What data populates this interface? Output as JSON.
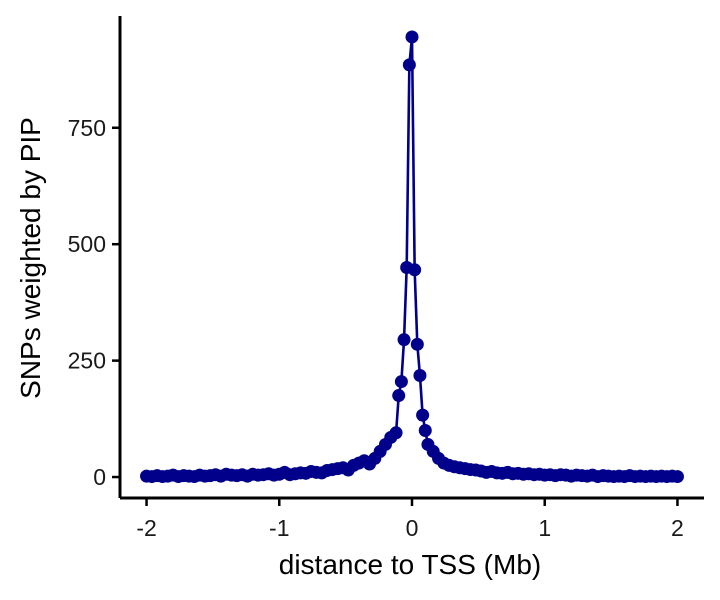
{
  "chart_data": {
    "type": "line",
    "xlabel": "distance to TSS (Mb)",
    "ylabel": "SNPs weighted by PIP",
    "xlim": [
      -2.2,
      2.2
    ],
    "ylim": [
      -45,
      990
    ],
    "xticks": [
      -2,
      -1,
      0,
      1,
      2
    ],
    "xtick_labels": [
      "-2",
      "-1",
      "0",
      "1",
      "2"
    ],
    "yticks": [
      0,
      250,
      500,
      750
    ],
    "ytick_labels": [
      "0",
      "250",
      "500",
      "750"
    ],
    "grid": false,
    "legend": false,
    "color": "#00008B",
    "series": [
      {
        "x": [
          -2.0,
          -1.96,
          -1.92,
          -1.88,
          -1.84,
          -1.8,
          -1.76,
          -1.72,
          -1.68,
          -1.64,
          -1.6,
          -1.56,
          -1.52,
          -1.48,
          -1.44,
          -1.4,
          -1.36,
          -1.32,
          -1.28,
          -1.24,
          -1.2,
          -1.16,
          -1.12,
          -1.08,
          -1.04,
          -1.0,
          -0.96,
          -0.92,
          -0.88,
          -0.84,
          -0.8,
          -0.76,
          -0.72,
          -0.68,
          -0.64,
          -0.6,
          -0.56,
          -0.52,
          -0.48,
          -0.44,
          -0.4,
          -0.36,
          -0.32,
          -0.28,
          -0.24,
          -0.2,
          -0.16,
          -0.12,
          -0.1,
          -0.08,
          -0.06,
          -0.04,
          -0.02,
          0.0,
          0.02,
          0.04,
          0.06,
          0.08,
          0.1,
          0.12,
          0.16,
          0.2,
          0.24,
          0.28,
          0.32,
          0.36,
          0.4,
          0.44,
          0.48,
          0.52,
          0.56,
          0.6,
          0.64,
          0.68,
          0.72,
          0.76,
          0.8,
          0.84,
          0.88,
          0.92,
          0.96,
          1.0,
          1.04,
          1.08,
          1.12,
          1.16,
          1.2,
          1.24,
          1.28,
          1.32,
          1.36,
          1.4,
          1.44,
          1.48,
          1.52,
          1.56,
          1.6,
          1.64,
          1.68,
          1.72,
          1.76,
          1.8,
          1.84,
          1.88,
          1.92,
          1.96,
          2.0
        ],
        "y": [
          2,
          1,
          3,
          1,
          2,
          4,
          1,
          3,
          2,
          1,
          4,
          2,
          3,
          5,
          2,
          6,
          4,
          3,
          5,
          2,
          6,
          4,
          5,
          7,
          4,
          6,
          10,
          5,
          7,
          9,
          8,
          12,
          10,
          9,
          14,
          16,
          18,
          20,
          15,
          25,
          30,
          35,
          28,
          40,
          55,
          70,
          85,
          95,
          175,
          205,
          295,
          450,
          885,
          945,
          445,
          285,
          218,
          133,
          100,
          70,
          55,
          40,
          30,
          25,
          22,
          20,
          18,
          16,
          15,
          13,
          10,
          12,
          9,
          8,
          10,
          7,
          8,
          6,
          7,
          5,
          6,
          4,
          5,
          3,
          5,
          4,
          2,
          4,
          3,
          2,
          4,
          1,
          3,
          2,
          1,
          2,
          1,
          3,
          1,
          2,
          1,
          2,
          1,
          2,
          1,
          2,
          1
        ]
      }
    ]
  }
}
